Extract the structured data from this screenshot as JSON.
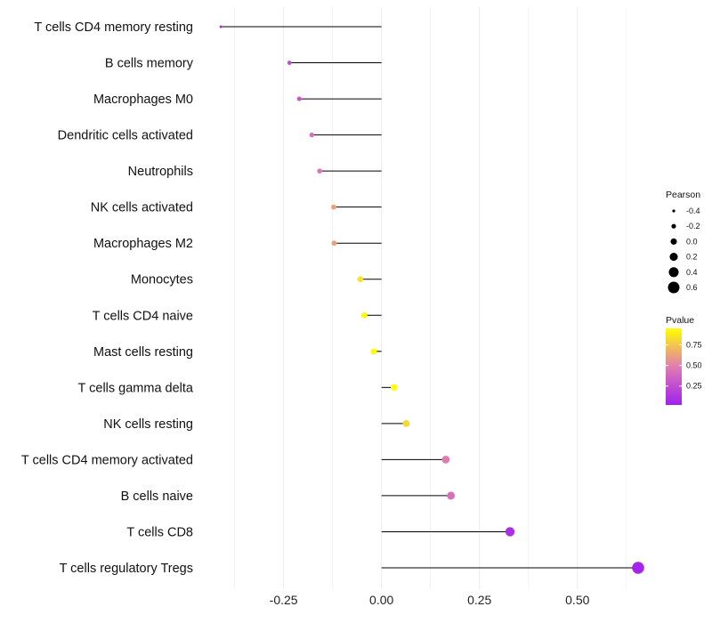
{
  "chart_data": {
    "type": "lollipop",
    "title": "",
    "xlabel": "",
    "ylabel": "",
    "xlim": [
      -0.44,
      0.68
    ],
    "xticks": [
      -0.25,
      0.0,
      0.25,
      0.5
    ],
    "xtick_labels": [
      "-0.25",
      "0.00",
      "0.25",
      "0.50"
    ],
    "categories": [
      "T cells CD4 memory resting",
      "B cells memory",
      "Macrophages M0",
      "Dendritic cells activated",
      "Neutrophils",
      "NK cells activated",
      "Macrophages M2",
      "Monocytes",
      "T cells CD4 naive",
      "Mast cells resting",
      "T cells gamma delta",
      "NK cells resting",
      "T cells CD4 memory activated",
      "B cells naive",
      "T cells CD8",
      "T cells regulatory  Tregs"
    ],
    "pearson": [
      -0.41,
      -0.235,
      -0.21,
      -0.178,
      -0.158,
      -0.122,
      -0.121,
      -0.054,
      -0.044,
      -0.02,
      0.032,
      0.063,
      0.164,
      0.177,
      0.328,
      0.655
    ],
    "pvalue": [
      0.1,
      0.25,
      0.3,
      0.42,
      0.45,
      0.62,
      0.62,
      0.85,
      0.92,
      0.95,
      0.97,
      0.82,
      0.48,
      0.42,
      0.1,
      0.05
    ],
    "legend": {
      "size_title": "Pearson",
      "size_values": [
        -0.4,
        -0.2,
        0.0,
        0.2,
        0.4,
        0.6
      ],
      "size_labels": [
        "-0.4",
        "-0.2",
        "0.0",
        "0.2",
        "0.4",
        "0.6"
      ],
      "color_title": "Pvalue",
      "color_ticks": [
        0.25,
        0.5,
        0.75
      ],
      "color_tick_labels": [
        "0.25",
        "0.50",
        "0.75"
      ],
      "color_range": [
        0.02,
        0.95
      ],
      "color_low": "#a020f0",
      "color_mid": "#e07cb0",
      "color_high": "#ffff00",
      "placement": "right"
    },
    "colors": {
      "stem": "#000000",
      "gridline": "#ebebeb"
    }
  }
}
